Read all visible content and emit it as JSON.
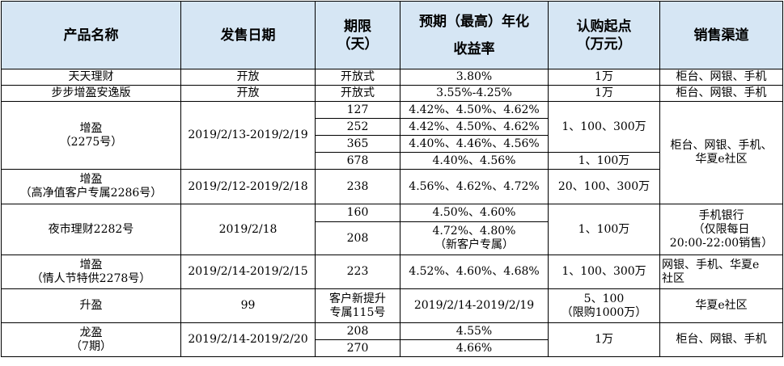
{
  "headers": {
    "name": "产品名称",
    "date": "发售日期",
    "term_l1": "期限",
    "term_l2": "（天）",
    "yield_l1": "预期（最高）年化",
    "yield_l2": "收益率",
    "min_l1": "认购起点",
    "min_l2": "（万元）",
    "channel": "销售渠道"
  },
  "rows": {
    "r1": {
      "name": "天天理财",
      "date": "开放",
      "term": "开放式",
      "yield": "3.80%",
      "min": "1万",
      "channel": "柜台、网银、手机"
    },
    "r2": {
      "name": "步步增盈安逸版",
      "date": "开放",
      "term": "开放式",
      "yield": "3.55%-4.25%",
      "min": "1万",
      "channel": "柜台、网银、手机"
    },
    "r3": {
      "name_l1": "增盈",
      "name_l2": "（2275号）",
      "date": "2019/2/13-2019/2/19",
      "terms": [
        "127",
        "252",
        "365",
        "678"
      ],
      "yields": [
        "4.42%、4.50%、4.62%",
        "4.42%、4.50%、4.62%",
        "4.40%、4.46%、4.56%",
        "4.40%、4.56%"
      ],
      "min_a": "1、100、300万",
      "min_b": "1、100万",
      "channel_l1": "柜台、网银、手机、",
      "channel_l2": "华夏e社区"
    },
    "r4": {
      "name_l1": "增盈",
      "name_l2": "（高净值客户专属2286号）",
      "date": "2019/2/12-2019/2/18",
      "term": "238",
      "yield": "4.56%、4.62%、4.72%",
      "min": "20、100、300万"
    },
    "r5": {
      "name": "夜市理财2282号",
      "date": "2019/2/18",
      "terms": [
        "160",
        "208"
      ],
      "yield_a": "4.50%、4.60%",
      "yield_b_l1": "4.72%、4.80%",
      "yield_b_l2": "（新客户专属）",
      "min": "1、100万",
      "channel_l1": "手机银行",
      "channel_l2": "（仅限每日",
      "channel_l3": "20:00-22:00销售）"
    },
    "r6": {
      "name_l1": "增盈",
      "name_l2": "（情人节特供2278号）",
      "date": "2019/2/14-2019/2/15",
      "term": "223",
      "yield": "4.52%、4.60%、4.68%",
      "min": "1、100、300万",
      "channel_l1": "网银、手机、华夏e",
      "channel_l2": "社区"
    },
    "r7": {
      "name": "升盈",
      "date": "99",
      "term_l1": "客户新提升",
      "term_l2": "专属115号",
      "yield": "2019/2/14-2019/2/19",
      "min_l1": "5、100",
      "min_l2": "（限购1000万）",
      "channel": "华夏e社区"
    },
    "r8": {
      "name_l1": "龙盈",
      "name_l2": "（7期）",
      "date": "2019/2/14-2019/2/20",
      "terms": [
        "208",
        "270"
      ],
      "yields": [
        "4.55%",
        "4.66%"
      ],
      "min": "1万",
      "channel": "柜台、网银、手机"
    }
  }
}
